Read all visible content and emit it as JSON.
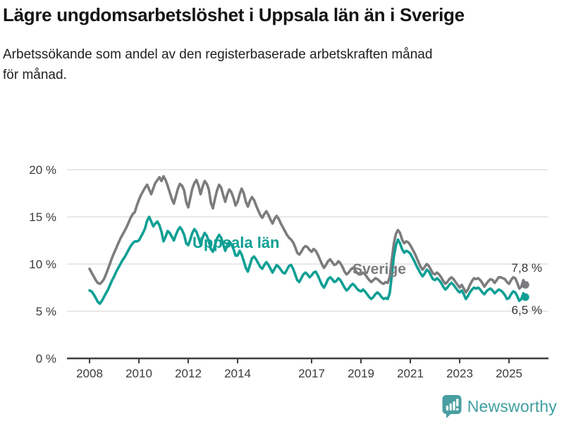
{
  "header": {
    "title": "Lägre ungdomsarbetslöshet i Uppsala län än i Sverige",
    "subtitle": "Arbetssökande som andel av den registerbaserade arbetskraften månad för månad."
  },
  "chart_data": {
    "type": "line",
    "title": "Lägre ungdomsarbetslöshet i Uppsala län än i Sverige",
    "subtitle": "Arbetssökande som andel av den registerbaserade arbetskraften månad för månad.",
    "x_unit": "month",
    "x_start": "2008-01",
    "x_end": "2025-09",
    "x_tick_years": [
      2008,
      2010,
      2012,
      2014,
      2017,
      2019,
      2021,
      2023,
      2025
    ],
    "x_tick_labels": [
      "2008",
      "2010",
      "2012",
      "2014",
      "2017",
      "2019",
      "2021",
      "2023",
      "2025"
    ],
    "y_ticks": [
      20,
      15,
      10,
      5,
      0
    ],
    "y_tick_labels": [
      "20 %",
      "15 %",
      "10 %",
      "5 %",
      "0 %"
    ],
    "ylim": [
      0,
      20
    ],
    "grid": true,
    "legend_position": "inline-labels",
    "grid_color": "#d9d9d9",
    "axis_color": "#3f3f3f",
    "series": [
      {
        "name": "Sverige",
        "color": "#7b7c7e",
        "end_label": "7,8 %",
        "end_value": 7.8,
        "values": [
          9.5,
          9.1,
          8.7,
          8.3,
          8.0,
          7.9,
          8.1,
          8.4,
          8.9,
          9.5,
          10.1,
          10.7,
          11.2,
          11.7,
          12.2,
          12.7,
          13.1,
          13.5,
          13.9,
          14.4,
          14.9,
          15.3,
          15.5,
          16.2,
          16.8,
          17.3,
          17.7,
          18.1,
          18.4,
          17.9,
          17.4,
          18.0,
          18.6,
          18.9,
          19.2,
          18.8,
          19.3,
          18.9,
          18.3,
          17.6,
          16.9,
          16.4,
          17.2,
          18.0,
          18.5,
          18.3,
          17.8,
          16.6,
          16.0,
          17.0,
          18.0,
          18.6,
          18.9,
          18.3,
          17.4,
          18.2,
          18.8,
          18.5,
          17.9,
          16.5,
          15.9,
          16.9,
          17.8,
          18.4,
          18.1,
          17.3,
          16.6,
          17.4,
          17.9,
          17.6,
          17.0,
          16.2,
          16.6,
          17.4,
          18.0,
          17.5,
          16.6,
          16.1,
          16.7,
          17.1,
          16.8,
          16.2,
          15.7,
          15.2,
          14.9,
          15.3,
          15.6,
          15.2,
          14.7,
          14.3,
          14.8,
          15.1,
          14.8,
          14.3,
          13.9,
          13.5,
          13.1,
          12.8,
          12.6,
          12.3,
          11.8,
          11.2,
          11.0,
          11.3,
          11.7,
          11.9,
          11.8,
          11.5,
          11.3,
          11.6,
          11.4,
          11.0,
          10.5,
          10.0,
          9.6,
          9.9,
          10.3,
          10.5,
          10.2,
          9.9,
          10.0,
          10.3,
          10.1,
          9.7,
          9.2,
          8.9,
          9.1,
          9.4,
          9.6,
          9.4,
          9.1,
          8.9,
          8.9,
          9.1,
          8.9,
          8.6,
          8.3,
          8.1,
          8.3,
          8.5,
          8.4,
          8.2,
          8.0,
          7.9,
          8.1,
          8.0,
          8.6,
          10.5,
          12.2,
          13.2,
          13.6,
          13.3,
          12.6,
          12.2,
          12.4,
          12.3,
          12.0,
          11.6,
          11.2,
          10.7,
          10.2,
          9.7,
          9.4,
          9.7,
          10.0,
          9.8,
          9.4,
          9.0,
          8.9,
          9.1,
          8.9,
          8.6,
          8.2,
          7.9,
          8.1,
          8.4,
          8.6,
          8.4,
          8.1,
          7.8,
          7.5,
          7.8,
          7.4,
          7.0,
          7.3,
          7.8,
          8.2,
          8.5,
          8.4,
          8.5,
          8.3,
          8.0,
          7.6,
          7.9,
          8.2,
          8.4,
          8.3,
          8.0,
          8.3,
          8.6,
          8.6,
          8.5,
          8.4,
          8.1,
          7.9,
          8.3,
          8.6,
          8.5,
          8.0,
          7.4,
          7.6,
          8.3,
          7.8
        ]
      },
      {
        "name": "Uppsala län",
        "color": "#0f9f94",
        "end_label": "6,5 %",
        "end_value": 6.5,
        "values": [
          7.2,
          7.1,
          6.8,
          6.4,
          6.0,
          5.8,
          6.1,
          6.5,
          6.9,
          7.3,
          7.8,
          8.3,
          8.7,
          9.2,
          9.6,
          10.0,
          10.4,
          10.7,
          11.1,
          11.5,
          11.9,
          12.2,
          12.4,
          12.4,
          12.5,
          12.9,
          13.3,
          13.8,
          14.6,
          15.0,
          14.5,
          14.0,
          14.3,
          14.5,
          14.1,
          13.4,
          12.4,
          12.9,
          13.5,
          13.3,
          12.9,
          12.5,
          13.1,
          13.6,
          13.9,
          13.6,
          13.1,
          12.2,
          12.0,
          12.6,
          13.3,
          13.7,
          13.4,
          12.8,
          12.1,
          12.8,
          13.3,
          13.0,
          12.4,
          11.6,
          11.3,
          12.0,
          12.7,
          13.1,
          12.8,
          12.1,
          11.4,
          12.0,
          12.4,
          12.1,
          11.6,
          10.9,
          10.9,
          11.4,
          11.0,
          10.3,
          9.6,
          9.2,
          9.9,
          10.6,
          10.8,
          10.5,
          10.1,
          9.7,
          9.5,
          9.9,
          10.2,
          9.9,
          9.5,
          9.1,
          9.5,
          9.9,
          9.7,
          9.4,
          9.1,
          9.0,
          9.4,
          9.8,
          9.9,
          9.5,
          8.9,
          8.3,
          8.1,
          8.5,
          8.9,
          9.1,
          8.9,
          8.6,
          8.8,
          9.1,
          9.2,
          8.8,
          8.3,
          7.8,
          7.5,
          7.9,
          8.4,
          8.6,
          8.4,
          8.1,
          8.2,
          8.5,
          8.3,
          7.9,
          7.5,
          7.2,
          7.4,
          7.7,
          7.9,
          7.7,
          7.4,
          7.2,
          7.1,
          7.3,
          7.1,
          6.8,
          6.5,
          6.3,
          6.5,
          6.8,
          7.0,
          6.8,
          6.5,
          6.3,
          6.4,
          6.3,
          6.9,
          8.8,
          10.8,
          12.0,
          12.6,
          12.2,
          11.6,
          11.2,
          11.4,
          11.3,
          11.1,
          10.7,
          10.3,
          9.8,
          9.4,
          9.0,
          8.7,
          9.0,
          9.4,
          9.2,
          8.8,
          8.4,
          8.3,
          8.5,
          8.3,
          8.0,
          7.6,
          7.3,
          7.5,
          7.8,
          8.0,
          7.8,
          7.5,
          7.2,
          7.0,
          7.2,
          6.8,
          6.3,
          6.6,
          7.0,
          7.3,
          7.5,
          7.4,
          7.5,
          7.3,
          7.0,
          6.8,
          7.1,
          7.3,
          7.4,
          7.2,
          6.9,
          7.1,
          7.3,
          7.2,
          7.0,
          6.7,
          6.3,
          6.4,
          6.8,
          7.1,
          7.0,
          6.6,
          6.1,
          6.3,
          6.9,
          6.5
        ]
      }
    ]
  },
  "footer": {
    "brand": "Newsworthy",
    "brand_color": "#3d9fa1",
    "logo_icon": "newsworthy-speech-bubble-barchart-icon"
  }
}
